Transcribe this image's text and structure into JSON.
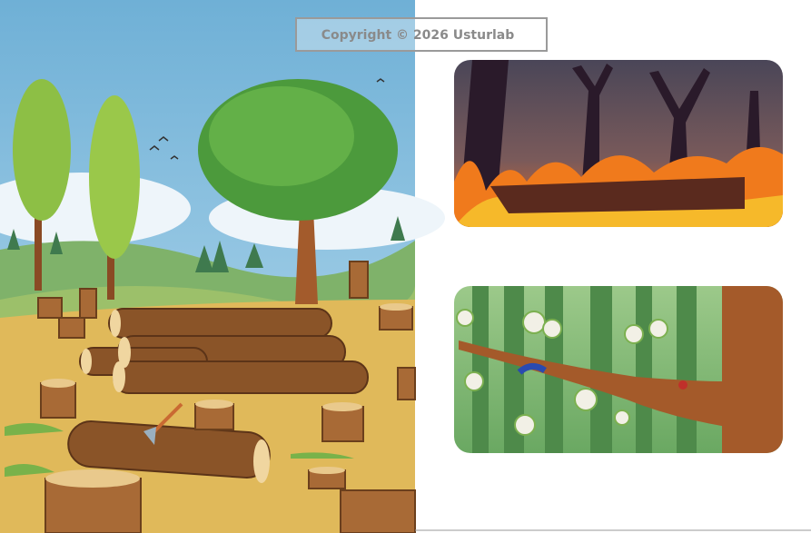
{
  "watermark": "Copyright © 2026 Usturlab"
}
